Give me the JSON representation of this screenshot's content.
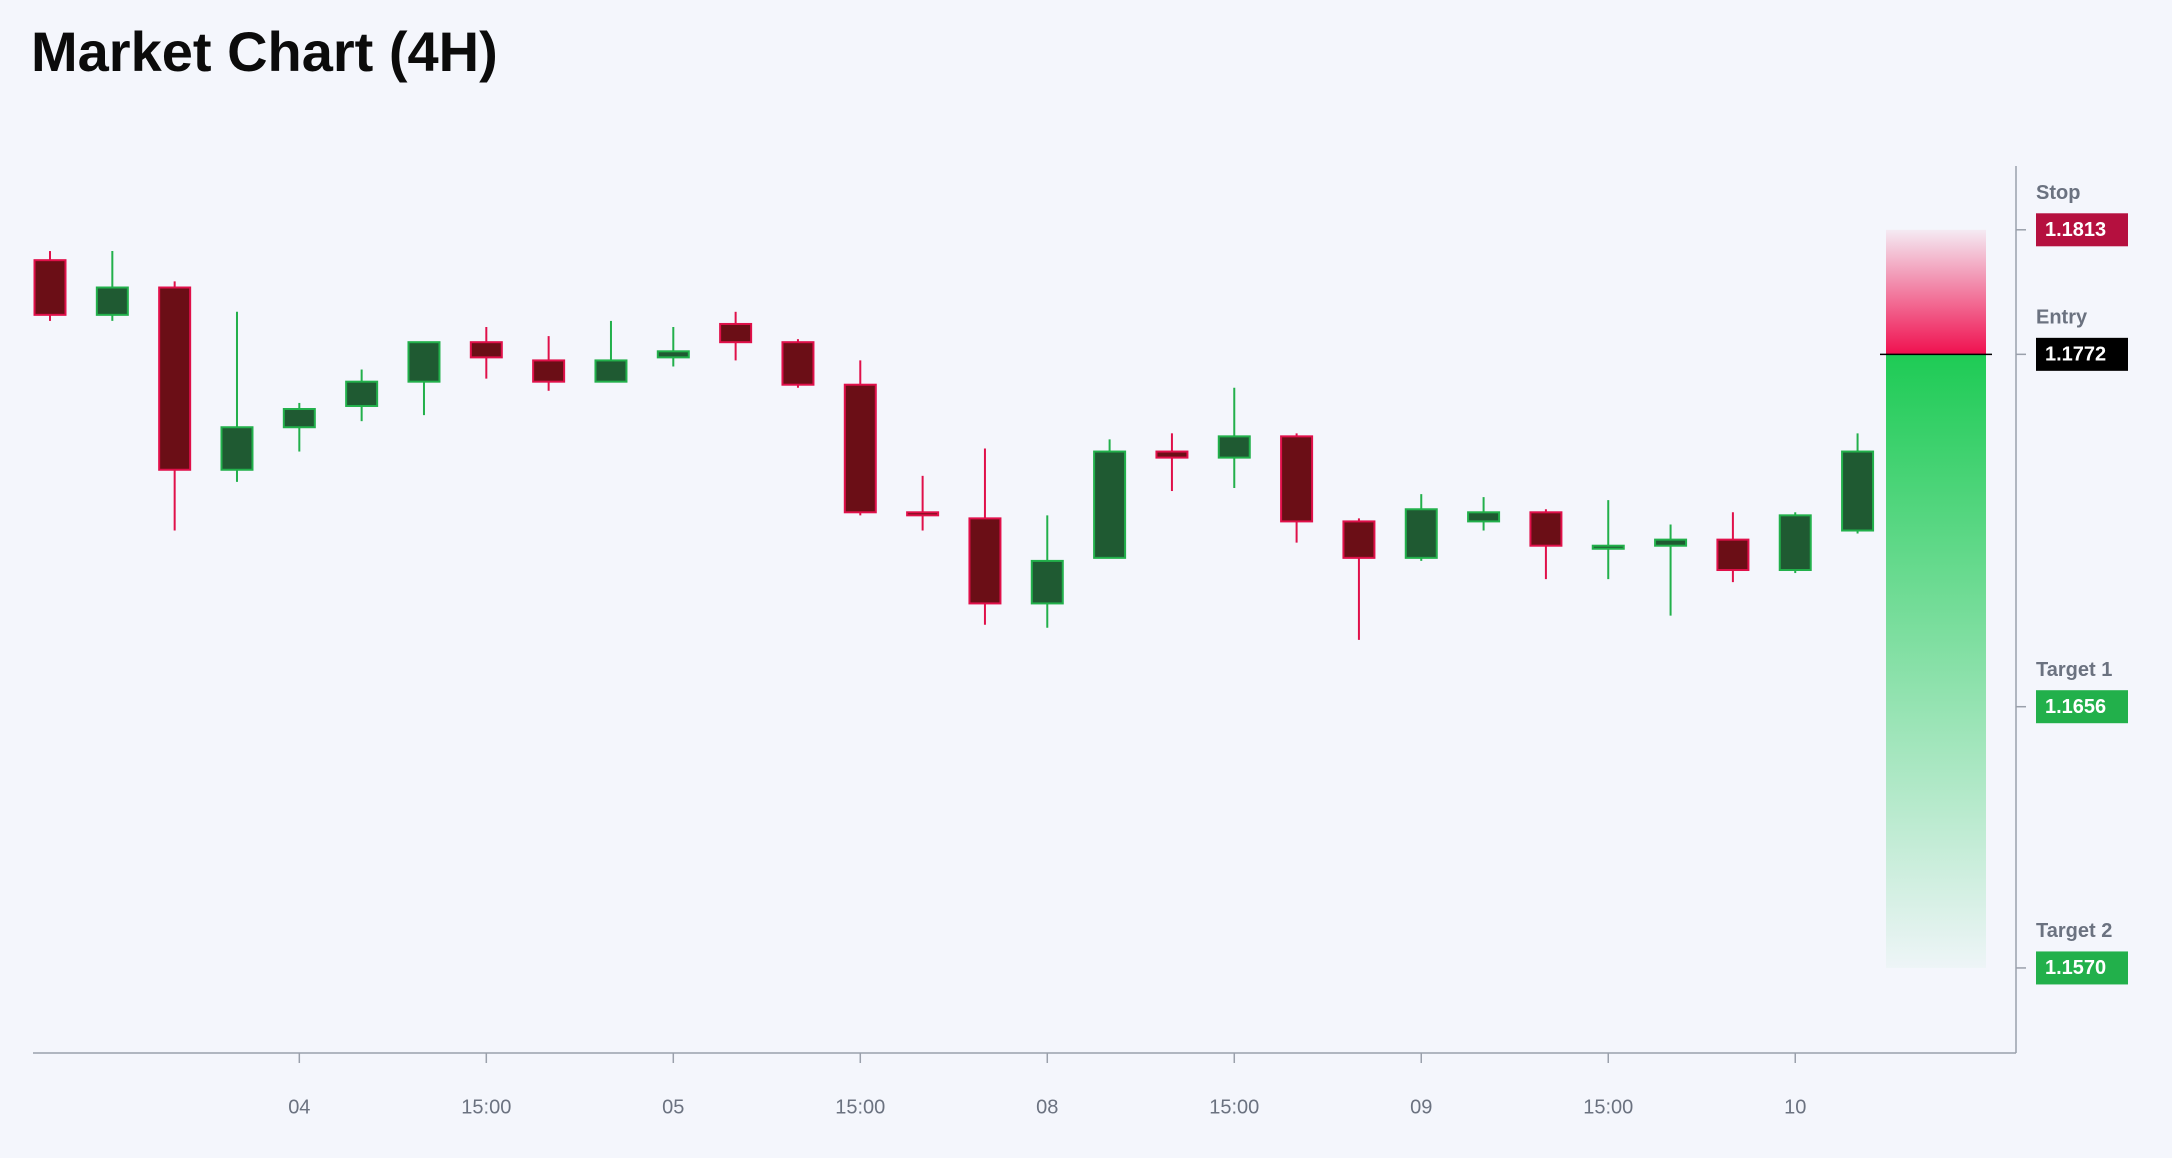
{
  "chart_data": {
    "type": "candlestick",
    "title": "Market Chart (4H)",
    "categories": [
      null,
      null,
      null,
      null,
      "04",
      null,
      null,
      "15:00",
      null,
      null,
      "05",
      null,
      null,
      "15:00",
      null,
      null,
      "08",
      null,
      null,
      "15:00",
      null,
      null,
      "09",
      null,
      null,
      "15:00",
      null,
      null,
      "10",
      null
    ],
    "open": [
      1.1803,
      1.1785,
      1.1794,
      1.1734,
      1.1748,
      1.1755,
      1.1763,
      1.1776,
      1.177,
      1.1763,
      1.1771,
      1.1782,
      1.1776,
      1.1762,
      1.172,
      1.1718,
      1.169,
      1.1705,
      1.174,
      1.1738,
      1.1745,
      1.1717,
      1.1705,
      1.1717,
      1.172,
      1.1708,
      1.1709,
      1.1711,
      1.1701,
      1.1714
    ],
    "high": [
      1.1806,
      1.1806,
      1.1796,
      1.1786,
      1.1756,
      1.1767,
      1.1776,
      1.1781,
      1.1778,
      1.1783,
      1.1781,
      1.1786,
      1.1777,
      1.177,
      1.1732,
      1.1741,
      1.1719,
      1.1744,
      1.1746,
      1.1761,
      1.1746,
      1.1718,
      1.1726,
      1.1725,
      1.1721,
      1.1724,
      1.1716,
      1.172,
      1.172,
      1.1746
    ],
    "low": [
      1.1783,
      1.1783,
      1.1714,
      1.173,
      1.174,
      1.175,
      1.1752,
      1.1764,
      1.176,
      1.1763,
      1.1768,
      1.177,
      1.1761,
      1.1719,
      1.1714,
      1.1683,
      1.1682,
      1.1705,
      1.1727,
      1.1728,
      1.171,
      1.1678,
      1.1704,
      1.1714,
      1.1698,
      1.1698,
      1.1686,
      1.1697,
      1.17,
      1.1713
    ],
    "close": [
      1.1785,
      1.1794,
      1.1734,
      1.1748,
      1.1754,
      1.1763,
      1.1776,
      1.1771,
      1.1763,
      1.177,
      1.1773,
      1.1776,
      1.1762,
      1.172,
      1.1719,
      1.169,
      1.1704,
      1.174,
      1.1738,
      1.1745,
      1.1717,
      1.1705,
      1.1721,
      1.172,
      1.1709,
      1.1709,
      1.1711,
      1.1701,
      1.1719,
      1.174
    ],
    "up_color": "#1f5a32",
    "up_edge": "#22b04b",
    "down_color": "#6b0e16",
    "down_edge": "#e0104a",
    "ylim": [
      1.1542,
      1.1834
    ],
    "levels": [
      {
        "name": "Stop",
        "value": 1.1813,
        "label": "1.1813",
        "color": "#b5103f"
      },
      {
        "name": "Entry",
        "value": 1.1772,
        "label": "1.1772",
        "color": "#000000"
      },
      {
        "name": "Target 1",
        "value": 1.1656,
        "label": "1.1656",
        "color": "#22b04b"
      },
      {
        "name": "Target 2",
        "value": 1.157,
        "label": "1.1570",
        "color": "#22b04b"
      }
    ]
  }
}
